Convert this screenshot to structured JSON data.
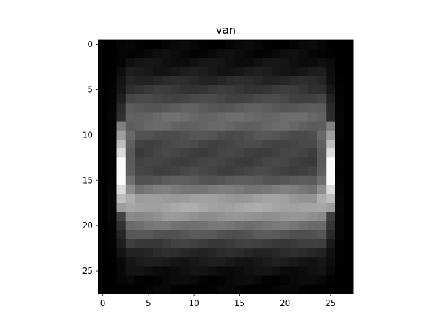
{
  "chart_data": {
    "type": "heatmap",
    "title": "van",
    "xlabel": "",
    "ylabel": "",
    "colormap": "gray",
    "shape": [
      28,
      28
    ],
    "value_range": [
      0,
      1
    ],
    "xlim": [
      -0.5,
      27.5
    ],
    "ylim": [
      27.5,
      -0.5
    ],
    "x_ticks": [
      0,
      5,
      10,
      15,
      20,
      25
    ],
    "y_ticks": [
      0,
      5,
      10,
      15,
      20,
      25
    ],
    "grid": false,
    "row_profile": [
      0.02,
      0.04,
      0.07,
      0.1,
      0.16,
      0.22,
      0.28,
      0.36,
      0.42,
      0.4,
      0.32,
      0.28,
      0.26,
      0.26,
      0.27,
      0.35,
      0.48,
      0.62,
      0.66,
      0.58,
      0.46,
      0.34,
      0.24,
      0.16,
      0.1,
      0.06,
      0.03,
      0.01
    ],
    "col_profile": [
      0.0,
      0.05,
      0.45,
      0.95,
      0.95,
      0.97,
      0.98,
      1.0,
      1.0,
      1.0,
      1.0,
      0.98,
      0.98,
      0.98,
      0.98,
      0.98,
      0.98,
      1.0,
      1.0,
      1.0,
      1.0,
      0.98,
      0.97,
      0.95,
      0.95,
      0.45,
      0.05,
      0.0
    ],
    "side_edge_columns": [
      2,
      25
    ],
    "side_edge_rows": [
      9,
      18
    ],
    "side_edge_peak": 0.98,
    "side_edge_peak_rows": [
      13,
      15
    ]
  }
}
